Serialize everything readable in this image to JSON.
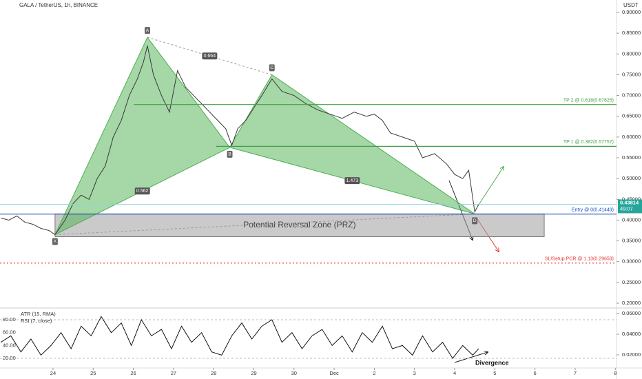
{
  "chart_data": [
    {
      "type": "line",
      "title": "GALA / TetherUS, 1h, BINANCE",
      "y_axis_label": "USDT",
      "x": [
        -1.3,
        -1.1,
        -0.9,
        -0.7,
        -0.5,
        -0.3,
        -0.1,
        0.05,
        0.3,
        0.5,
        0.7,
        0.9,
        1.1,
        1.3,
        1.5,
        1.7,
        1.9,
        2.1,
        2.25,
        2.35,
        2.5,
        2.7,
        2.9,
        3.1,
        3.3,
        3.5,
        3.7,
        3.9,
        4.1,
        4.3,
        4.45,
        4.6,
        4.8,
        5.0,
        5.2,
        5.45,
        5.7,
        6.0,
        6.3,
        6.6,
        6.9,
        7.2,
        7.5,
        7.8,
        8.0,
        8.2,
        8.4,
        8.7,
        9.0,
        9.2,
        9.5,
        9.8,
        10.0,
        10.2,
        10.35,
        10.5,
        10.6
      ],
      "series": [
        {
          "color": "#3a3a3a",
          "values": [
            0.405,
            0.4,
            0.41,
            0.395,
            0.39,
            0.38,
            0.375,
            0.365,
            0.4,
            0.44,
            0.46,
            0.45,
            0.5,
            0.53,
            0.6,
            0.64,
            0.7,
            0.74,
            0.78,
            0.82,
            0.75,
            0.7,
            0.66,
            0.76,
            0.72,
            0.7,
            0.68,
            0.66,
            0.64,
            0.62,
            0.58,
            0.62,
            0.64,
            0.67,
            0.7,
            0.74,
            0.71,
            0.7,
            0.68,
            0.665,
            0.655,
            0.645,
            0.66,
            0.65,
            0.655,
            0.64,
            0.61,
            0.6,
            0.59,
            0.55,
            0.56,
            0.535,
            0.51,
            0.5,
            0.52,
            0.42,
            0.438
          ]
        }
      ],
      "xlim": [
        -1.32,
        14.03
      ],
      "ylim": [
        0.2,
        0.9
      ],
      "yticks": [
        {
          "value": 0.2,
          "label": "0.20000"
        },
        {
          "value": 0.25,
          "label": "0.25000"
        },
        {
          "value": 0.3,
          "label": "0.30000"
        },
        {
          "value": 0.35,
          "label": "0.35000"
        },
        {
          "value": 0.4,
          "label": "0.40000"
        },
        {
          "value": 0.45,
          "label": "0.45000"
        },
        {
          "value": 0.5,
          "label": "0.50000"
        },
        {
          "value": 0.55,
          "label": "0.55000"
        },
        {
          "value": 0.6,
          "label": "0.60000"
        },
        {
          "value": 0.65,
          "label": "0.65000"
        },
        {
          "value": 0.7,
          "label": "0.70000"
        },
        {
          "value": 0.75,
          "label": "0.75000"
        },
        {
          "value": 0.8,
          "label": "0.80000"
        },
        {
          "value": 0.85,
          "label": "0.85000"
        },
        {
          "value": 0.9,
          "label": "0.90000"
        }
      ],
      "levels": [
        {
          "label": "TP 2 @ 0.618(0.67825)",
          "value": 0.67825,
          "color": "#43a047",
          "dash": false
        },
        {
          "label": "TP 1 @ 0.382(0.57757)",
          "value": 0.57757,
          "color": "#43a047",
          "dash": false
        },
        {
          "label": "Entry @ 0(0.41449)",
          "value": 0.41449,
          "color": "#1e53b8",
          "dash": false
        },
        {
          "label": "SL/Setup PCR @ 1.13(0.29659)",
          "value": 0.29659,
          "color": "#e53935",
          "dash": true
        }
      ],
      "pattern": {
        "color": "#4caf50",
        "points": [
          {
            "label": "X",
            "x": 0.05,
            "y": 0.365
          },
          {
            "label": "A",
            "x": 2.35,
            "y": 0.84
          },
          {
            "label": "B",
            "x": 4.4,
            "y": 0.575
          },
          {
            "label": "C",
            "x": 5.45,
            "y": 0.75
          },
          {
            "label": "D",
            "x": 10.5,
            "y": 0.415
          }
        ],
        "ratios": [
          "0.664",
          "0.562",
          "1.473"
        ]
      },
      "zone": {
        "label": "Potential Reversal Zone (PRZ)",
        "x": [
          0.05,
          12.23
        ],
        "y": [
          0.36,
          0.415
        ]
      },
      "last_price": {
        "value": 0.43814,
        "label": "0.43814"
      },
      "countdown": "49:07"
    },
    {
      "type": "line",
      "legend": [
        "ATR (15, RMA)",
        "RSI (7, close)"
      ],
      "annotation": "Divergence",
      "x": [
        -1.3,
        -1.05,
        -0.8,
        -0.55,
        -0.3,
        -0.05,
        0.2,
        0.45,
        0.7,
        0.95,
        1.2,
        1.45,
        1.7,
        1.95,
        2.2,
        2.45,
        2.7,
        2.95,
        3.2,
        3.45,
        3.7,
        3.95,
        4.2,
        4.45,
        4.7,
        4.95,
        5.2,
        5.45,
        5.7,
        5.95,
        6.2,
        6.45,
        6.7,
        6.95,
        7.2,
        7.45,
        7.7,
        7.95,
        8.2,
        8.45,
        8.7,
        8.95,
        9.2,
        9.45,
        9.7,
        9.95,
        10.2,
        10.45,
        10.6
      ],
      "series": [
        {
          "color": "#111111",
          "values": [
            45,
            55,
            30,
            50,
            25,
            40,
            60,
            35,
            70,
            55,
            85,
            60,
            75,
            40,
            80,
            55,
            65,
            35,
            70,
            45,
            60,
            30,
            25,
            55,
            75,
            50,
            70,
            80,
            45,
            60,
            35,
            55,
            65,
            40,
            55,
            30,
            60,
            45,
            70,
            35,
            40,
            25,
            55,
            30,
            45,
            20,
            40,
            25,
            35
          ]
        }
      ],
      "xlim": [
        -1.32,
        14.03
      ],
      "ylim": [
        4,
        95
      ],
      "y2lim": [
        0.0067,
        0.0633
      ],
      "yticks": [
        {
          "value": 20,
          "label": "20.00"
        },
        {
          "value": 40,
          "label": "40.00"
        },
        {
          "value": 60,
          "label": "60.00"
        },
        {
          "value": 80,
          "label": "80.00"
        }
      ],
      "y2ticks": [
        {
          "value": 0.02,
          "label": "0.02000"
        },
        {
          "value": 0.04,
          "label": "0.04000"
        },
        {
          "value": 0.06,
          "label": "0.06000"
        }
      ],
      "xticks": [
        {
          "value": 0,
          "label": "24"
        },
        {
          "value": 1,
          "label": "25"
        },
        {
          "value": 2,
          "label": "26"
        },
        {
          "value": 3,
          "label": "27"
        },
        {
          "value": 4,
          "label": "28"
        },
        {
          "value": 5,
          "label": "29"
        },
        {
          "value": 6,
          "label": "30"
        },
        {
          "value": 7,
          "label": "Dec"
        },
        {
          "value": 8,
          "label": "2"
        },
        {
          "value": 9,
          "label": "3"
        },
        {
          "value": 10,
          "label": "4"
        },
        {
          "value": 11,
          "label": "5"
        },
        {
          "value": 12,
          "label": "6"
        },
        {
          "value": 13,
          "label": "7"
        },
        {
          "value": 14,
          "label": "8"
        }
      ]
    }
  ]
}
